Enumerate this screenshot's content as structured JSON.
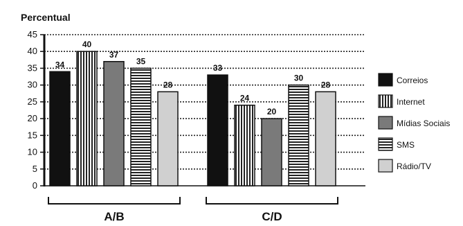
{
  "chart_data": {
    "type": "bar",
    "ylabel": "Percentual",
    "xlabel": "",
    "ylim": [
      0,
      45
    ],
    "yticks": [
      0,
      5,
      10,
      15,
      20,
      25,
      30,
      35,
      40,
      45
    ],
    "grid": "horizontal dotted",
    "legend_position": "right",
    "categories": [
      "A/B",
      "C/D"
    ],
    "series": [
      {
        "name": "Correios",
        "values": [
          34,
          33
        ],
        "pattern": "solid",
        "color": "#111111"
      },
      {
        "name": "Internet",
        "values": [
          40,
          24
        ],
        "pattern": "vertical-stripes",
        "color": "#ffffff"
      },
      {
        "name": "Mídias Sociais",
        "values": [
          37,
          20
        ],
        "pattern": "solid",
        "color": "#7a7a7a"
      },
      {
        "name": "SMS",
        "values": [
          35,
          30
        ],
        "pattern": "horizontal-stripes",
        "color": "#ffffff"
      },
      {
        "name": "Rádio/TV",
        "values": [
          28,
          28
        ],
        "pattern": "solid",
        "color": "#d0d0d0"
      }
    ]
  }
}
